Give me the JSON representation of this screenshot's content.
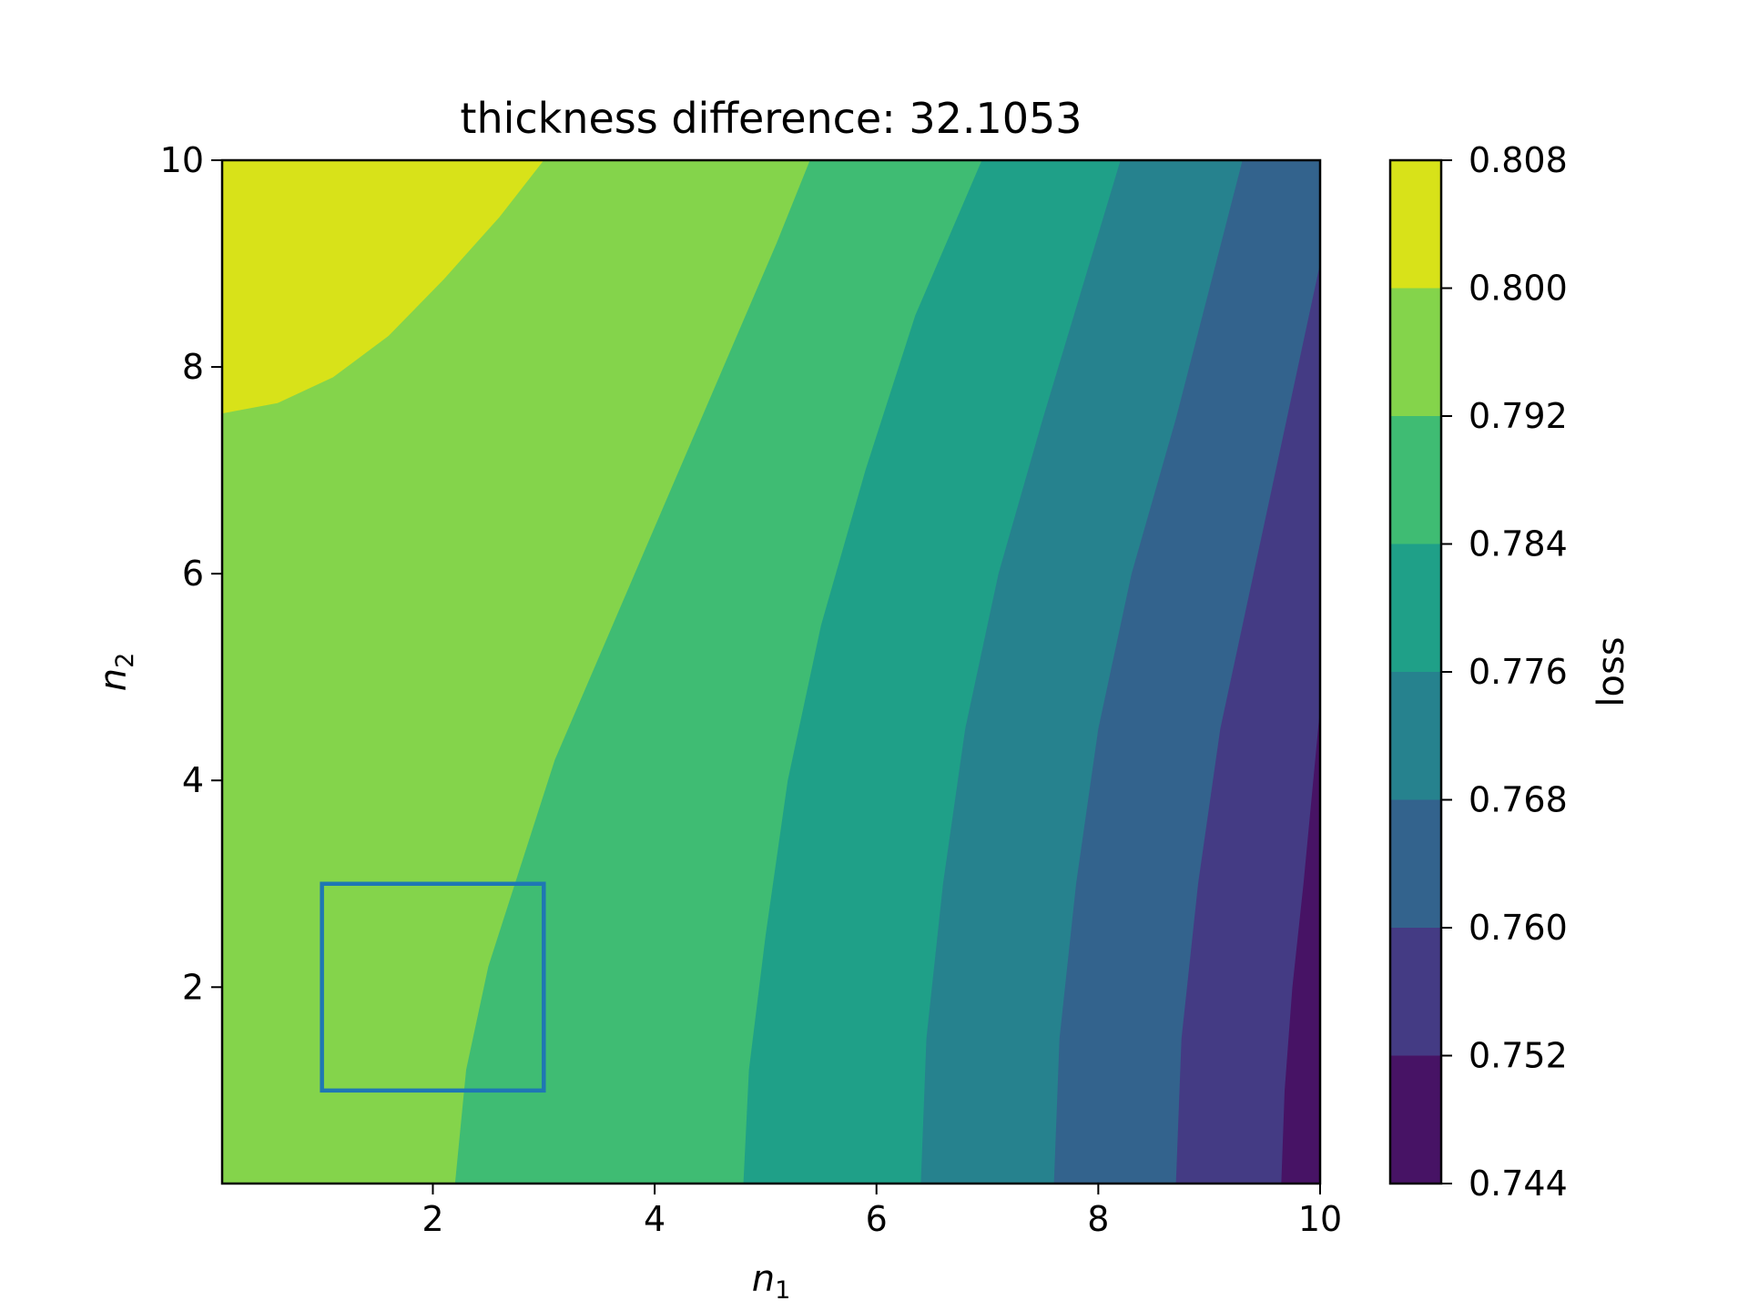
{
  "chart_data": {
    "type": "contourf",
    "title": "thickness difference:  32.1053",
    "xlabel": {
      "symbol": "n",
      "subscript": "1"
    },
    "ylabel": {
      "symbol": "n",
      "subscript": "2"
    },
    "xlim": [
      0.1,
      10
    ],
    "ylim": [
      0.1,
      10
    ],
    "x_ticks": [
      2,
      4,
      6,
      8,
      10
    ],
    "y_ticks": [
      2,
      4,
      6,
      8,
      10
    ],
    "x_tick_labels": [
      "2",
      "4",
      "6",
      "8",
      "10"
    ],
    "y_tick_labels": [
      "2",
      "4",
      "6",
      "8",
      "10"
    ],
    "colorbar": {
      "label": "loss",
      "levels": [
        0.744,
        0.752,
        0.76,
        0.768,
        0.776,
        0.784,
        0.792,
        0.8,
        0.808
      ],
      "tick_labels": [
        "0.744",
        "0.752",
        "0.760",
        "0.768",
        "0.776",
        "0.784",
        "0.792",
        "0.800",
        "0.808"
      ],
      "colors": [
        "#471365",
        "#443b84",
        "#33638d",
        "#26828e",
        "#1fa088",
        "#3fbc73",
        "#84d44b",
        "#d8e219"
      ]
    },
    "contour_boundaries": [
      {
        "between": [
          "0.800",
          "0.808"
        ],
        "points": [
          [
            0.1,
            7.55
          ],
          [
            0.6,
            7.65
          ],
          [
            1.1,
            7.9
          ],
          [
            1.6,
            8.3
          ],
          [
            2.1,
            8.85
          ],
          [
            2.6,
            9.45
          ],
          [
            3.0,
            10
          ]
        ]
      },
      {
        "between": [
          "0.792",
          "0.800"
        ],
        "points": [
          [
            2.2,
            0.1
          ],
          [
            2.3,
            1.2
          ],
          [
            2.5,
            2.2
          ],
          [
            2.8,
            3.2
          ],
          [
            3.1,
            4.2
          ],
          [
            3.5,
            5.2
          ],
          [
            3.9,
            6.2
          ],
          [
            4.3,
            7.2
          ],
          [
            4.7,
            8.2
          ],
          [
            5.1,
            9.2
          ],
          [
            5.4,
            10
          ]
        ]
      },
      {
        "between": [
          "0.784",
          "0.792"
        ],
        "points": [
          [
            4.8,
            0.1
          ],
          [
            4.85,
            1.2
          ],
          [
            5.0,
            2.5
          ],
          [
            5.2,
            4.0
          ],
          [
            5.5,
            5.5
          ],
          [
            5.9,
            7.0
          ],
          [
            6.35,
            8.5
          ],
          [
            6.95,
            10
          ]
        ]
      },
      {
        "between": [
          "0.776",
          "0.784"
        ],
        "points": [
          [
            6.4,
            0.1
          ],
          [
            6.45,
            1.5
          ],
          [
            6.6,
            3.0
          ],
          [
            6.8,
            4.5
          ],
          [
            7.1,
            6.0
          ],
          [
            7.5,
            7.5
          ],
          [
            8.2,
            10
          ]
        ]
      },
      {
        "between": [
          "0.768",
          "0.776"
        ],
        "points": [
          [
            7.6,
            0.1
          ],
          [
            7.65,
            1.5
          ],
          [
            7.8,
            3.0
          ],
          [
            8.0,
            4.5
          ],
          [
            8.3,
            6.0
          ],
          [
            8.7,
            7.5
          ],
          [
            9.3,
            10
          ]
        ]
      },
      {
        "between": [
          "0.760",
          "0.768"
        ],
        "points": [
          [
            8.7,
            0.1
          ],
          [
            8.75,
            1.5
          ],
          [
            8.9,
            3.0
          ],
          [
            9.1,
            4.5
          ],
          [
            9.4,
            6.0
          ],
          [
            9.7,
            7.5
          ],
          [
            10.0,
            9.0
          ]
        ]
      },
      {
        "between": [
          "0.752",
          "0.760"
        ],
        "points": [
          [
            9.65,
            0.1
          ],
          [
            9.68,
            1.0
          ],
          [
            9.75,
            2.0
          ],
          [
            9.85,
            3.0
          ],
          [
            10.0,
            4.7
          ]
        ]
      }
    ],
    "annotation_rectangle": {
      "x": [
        1,
        3
      ],
      "y": [
        1,
        3
      ],
      "color": "#1f77b4"
    }
  }
}
